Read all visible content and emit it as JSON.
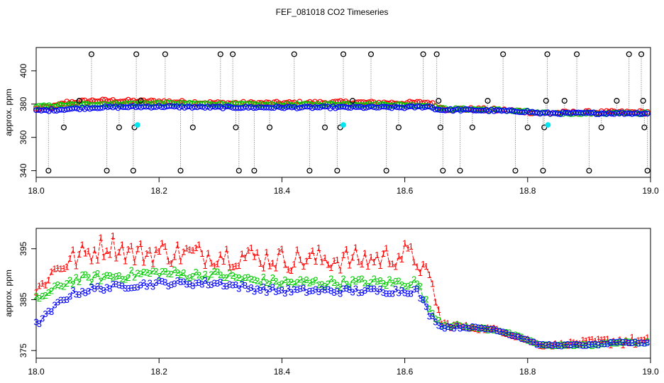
{
  "title": "FEF_081018  CO2 Timeseries",
  "colors": {
    "s1": "#ff0000",
    "s2": "#00cc00",
    "s3": "#0000ff",
    "outlier": "#000000",
    "flag": "#00e5ee",
    "line": "#999999"
  },
  "chart_data": [
    {
      "type": "scatter",
      "ylabel": "approx. ppm",
      "xlim": [
        18.0,
        19.0
      ],
      "ylim": [
        336,
        414
      ],
      "xticks": [
        "18.0",
        "18.2",
        "18.4",
        "18.6",
        "18.8",
        "19.0"
      ],
      "xtick_values": [
        18.0,
        18.2,
        18.4,
        18.6,
        18.8,
        19.0
      ],
      "yticks": [
        "340",
        "360",
        "380",
        "400"
      ],
      "ytick_values": [
        340,
        360,
        380,
        400
      ],
      "profile": {
        "x": [
          18.0,
          18.03,
          18.05,
          18.1,
          18.2,
          18.3,
          18.4,
          18.5,
          18.6,
          18.64,
          18.655,
          18.67,
          18.7,
          18.75,
          18.8,
          18.82,
          18.9,
          18.99
        ],
        "s1": [
          377,
          378.5,
          381,
          382,
          381.5,
          380.5,
          380.5,
          381,
          380.5,
          381,
          378,
          377,
          377,
          376.5,
          375.5,
          374.5,
          375,
          375
        ],
        "s2": [
          378.5,
          379,
          379.5,
          380,
          380.5,
          380,
          379.5,
          380,
          379.5,
          379,
          377.5,
          377,
          377,
          376.5,
          375.5,
          374.5,
          374.5,
          374.5
        ],
        "s3": [
          376,
          376.5,
          377,
          378,
          378.5,
          378,
          378,
          378,
          378,
          378.5,
          376.5,
          376.5,
          376.5,
          376,
          375.5,
          374.5,
          374.5,
          374.5
        ]
      },
      "outliers": [
        {
          "x": 18.02,
          "y": 340
        },
        {
          "x": 18.045,
          "y": 366
        },
        {
          "x": 18.07,
          "y": 382
        },
        {
          "x": 18.09,
          "y": 410
        },
        {
          "x": 18.115,
          "y": 340
        },
        {
          "x": 18.135,
          "y": 366
        },
        {
          "x": 18.158,
          "y": 340
        },
        {
          "x": 18.16,
          "y": 366
        },
        {
          "x": 18.163,
          "y": 410
        },
        {
          "x": 18.17,
          "y": 382
        },
        {
          "x": 18.21,
          "y": 410
        },
        {
          "x": 18.235,
          "y": 340
        },
        {
          "x": 18.255,
          "y": 366
        },
        {
          "x": 18.3,
          "y": 410
        },
        {
          "x": 18.32,
          "y": 410
        },
        {
          "x": 18.325,
          "y": 366
        },
        {
          "x": 18.33,
          "y": 340
        },
        {
          "x": 18.355,
          "y": 340
        },
        {
          "x": 18.38,
          "y": 366
        },
        {
          "x": 18.42,
          "y": 410
        },
        {
          "x": 18.445,
          "y": 340
        },
        {
          "x": 18.47,
          "y": 366
        },
        {
          "x": 18.49,
          "y": 340
        },
        {
          "x": 18.495,
          "y": 366
        },
        {
          "x": 18.5,
          "y": 410
        },
        {
          "x": 18.515,
          "y": 382
        },
        {
          "x": 18.545,
          "y": 410
        },
        {
          "x": 18.57,
          "y": 340
        },
        {
          "x": 18.59,
          "y": 366
        },
        {
          "x": 18.63,
          "y": 410
        },
        {
          "x": 18.652,
          "y": 410
        },
        {
          "x": 18.655,
          "y": 382
        },
        {
          "x": 18.658,
          "y": 366
        },
        {
          "x": 18.662,
          "y": 340
        },
        {
          "x": 18.69,
          "y": 340
        },
        {
          "x": 18.71,
          "y": 366
        },
        {
          "x": 18.735,
          "y": 382
        },
        {
          "x": 18.76,
          "y": 410
        },
        {
          "x": 18.78,
          "y": 340
        },
        {
          "x": 18.8,
          "y": 366
        },
        {
          "x": 18.825,
          "y": 340
        },
        {
          "x": 18.827,
          "y": 366
        },
        {
          "x": 18.83,
          "y": 382
        },
        {
          "x": 18.832,
          "y": 410
        },
        {
          "x": 18.86,
          "y": 382
        },
        {
          "x": 18.88,
          "y": 410
        },
        {
          "x": 18.9,
          "y": 340
        },
        {
          "x": 18.92,
          "y": 366
        },
        {
          "x": 18.945,
          "y": 382
        },
        {
          "x": 18.965,
          "y": 410
        },
        {
          "x": 18.985,
          "y": 410
        },
        {
          "x": 18.988,
          "y": 382
        },
        {
          "x": 18.99,
          "y": 366
        },
        {
          "x": 18.995,
          "y": 340
        }
      ],
      "flags": [
        {
          "x": 18.165,
          "y": 367.5
        },
        {
          "x": 18.5,
          "y": 367.5
        },
        {
          "x": 18.833,
          "y": 367.5
        }
      ]
    },
    {
      "type": "line",
      "ylabel": "approx. ppm",
      "xlim": [
        18.0,
        19.0
      ],
      "ylim": [
        373.5,
        399
      ],
      "xticks": [
        "18.0",
        "18.2",
        "18.4",
        "18.6",
        "18.8",
        "19.0"
      ],
      "xtick_values": [
        18.0,
        18.2,
        18.4,
        18.6,
        18.8,
        19.0
      ],
      "yticks": [
        "375",
        "385",
        "395"
      ],
      "ytick_values": [
        375,
        385,
        395
      ],
      "series": [
        {
          "name": "1",
          "label": "1",
          "x": [
            18.0,
            18.02,
            18.04,
            18.06,
            18.08,
            18.1,
            18.12,
            18.14,
            18.16,
            18.2,
            18.25,
            18.3,
            18.4,
            18.45,
            18.5,
            18.55,
            18.6,
            18.62,
            18.645,
            18.66,
            18.7,
            18.75,
            18.8,
            18.82,
            18.84,
            18.9,
            18.95,
            18.99
          ],
          "y": [
            386,
            389,
            391,
            392,
            393,
            394,
            395,
            394,
            393,
            393.5,
            393,
            393,
            392,
            392,
            392,
            392,
            393,
            392,
            387,
            380,
            379.5,
            379,
            377,
            376,
            376,
            376.5,
            376.5,
            376.5
          ],
          "amp": [
            1.5,
            2,
            2.5,
            3,
            3,
            3,
            3,
            3,
            3,
            3,
            3,
            3,
            3,
            3,
            3,
            3,
            3,
            3,
            2,
            0.8,
            0.5,
            0.4,
            0.4,
            0.3,
            0.3,
            0.6,
            1.2,
            1
          ]
        },
        {
          "name": "2",
          "label": "2",
          "x": [
            18.0,
            18.02,
            18.04,
            18.06,
            18.1,
            18.15,
            18.2,
            18.25,
            18.3,
            18.35,
            18.4,
            18.5,
            18.6,
            18.62,
            18.64,
            18.66,
            18.7,
            18.75,
            18.8,
            18.82,
            18.84,
            18.9,
            18.95,
            18.99
          ],
          "y": [
            385,
            386,
            387.5,
            388.5,
            389,
            389.5,
            390,
            389.5,
            389.5,
            388.5,
            388,
            388,
            388,
            388,
            383,
            380,
            379.5,
            379,
            377,
            376,
            376,
            376,
            376.5,
            376.5
          ],
          "amp": [
            1,
            1,
            1.5,
            1.5,
            1.5,
            1.5,
            1.5,
            1.5,
            1.5,
            1.5,
            1.5,
            1.5,
            1.5,
            1.5,
            1,
            0.6,
            0.5,
            0.4,
            0.4,
            0.3,
            0.3,
            0.3,
            0.4,
            0.4
          ]
        },
        {
          "name": "3",
          "label": "3",
          "x": [
            18.0,
            18.02,
            18.04,
            18.06,
            18.1,
            18.15,
            18.2,
            18.25,
            18.3,
            18.35,
            18.4,
            18.5,
            18.6,
            18.62,
            18.64,
            18.66,
            18.7,
            18.75,
            18.8,
            18.82,
            18.84,
            18.9,
            18.95,
            18.99
          ],
          "y": [
            380,
            382,
            384.5,
            386,
            387,
            387.5,
            388,
            388,
            388,
            387,
            386.5,
            386.5,
            386.5,
            386.5,
            382,
            379.5,
            379.5,
            379,
            377,
            376,
            376,
            376,
            376.5,
            376.5
          ],
          "amp": [
            0.8,
            1,
            1,
            1,
            1,
            1,
            1,
            1,
            1,
            1,
            1,
            1,
            1,
            1,
            0.8,
            0.5,
            0.4,
            0.4,
            0.3,
            0.3,
            0.3,
            0.3,
            0.3,
            0.3
          ]
        }
      ]
    }
  ]
}
